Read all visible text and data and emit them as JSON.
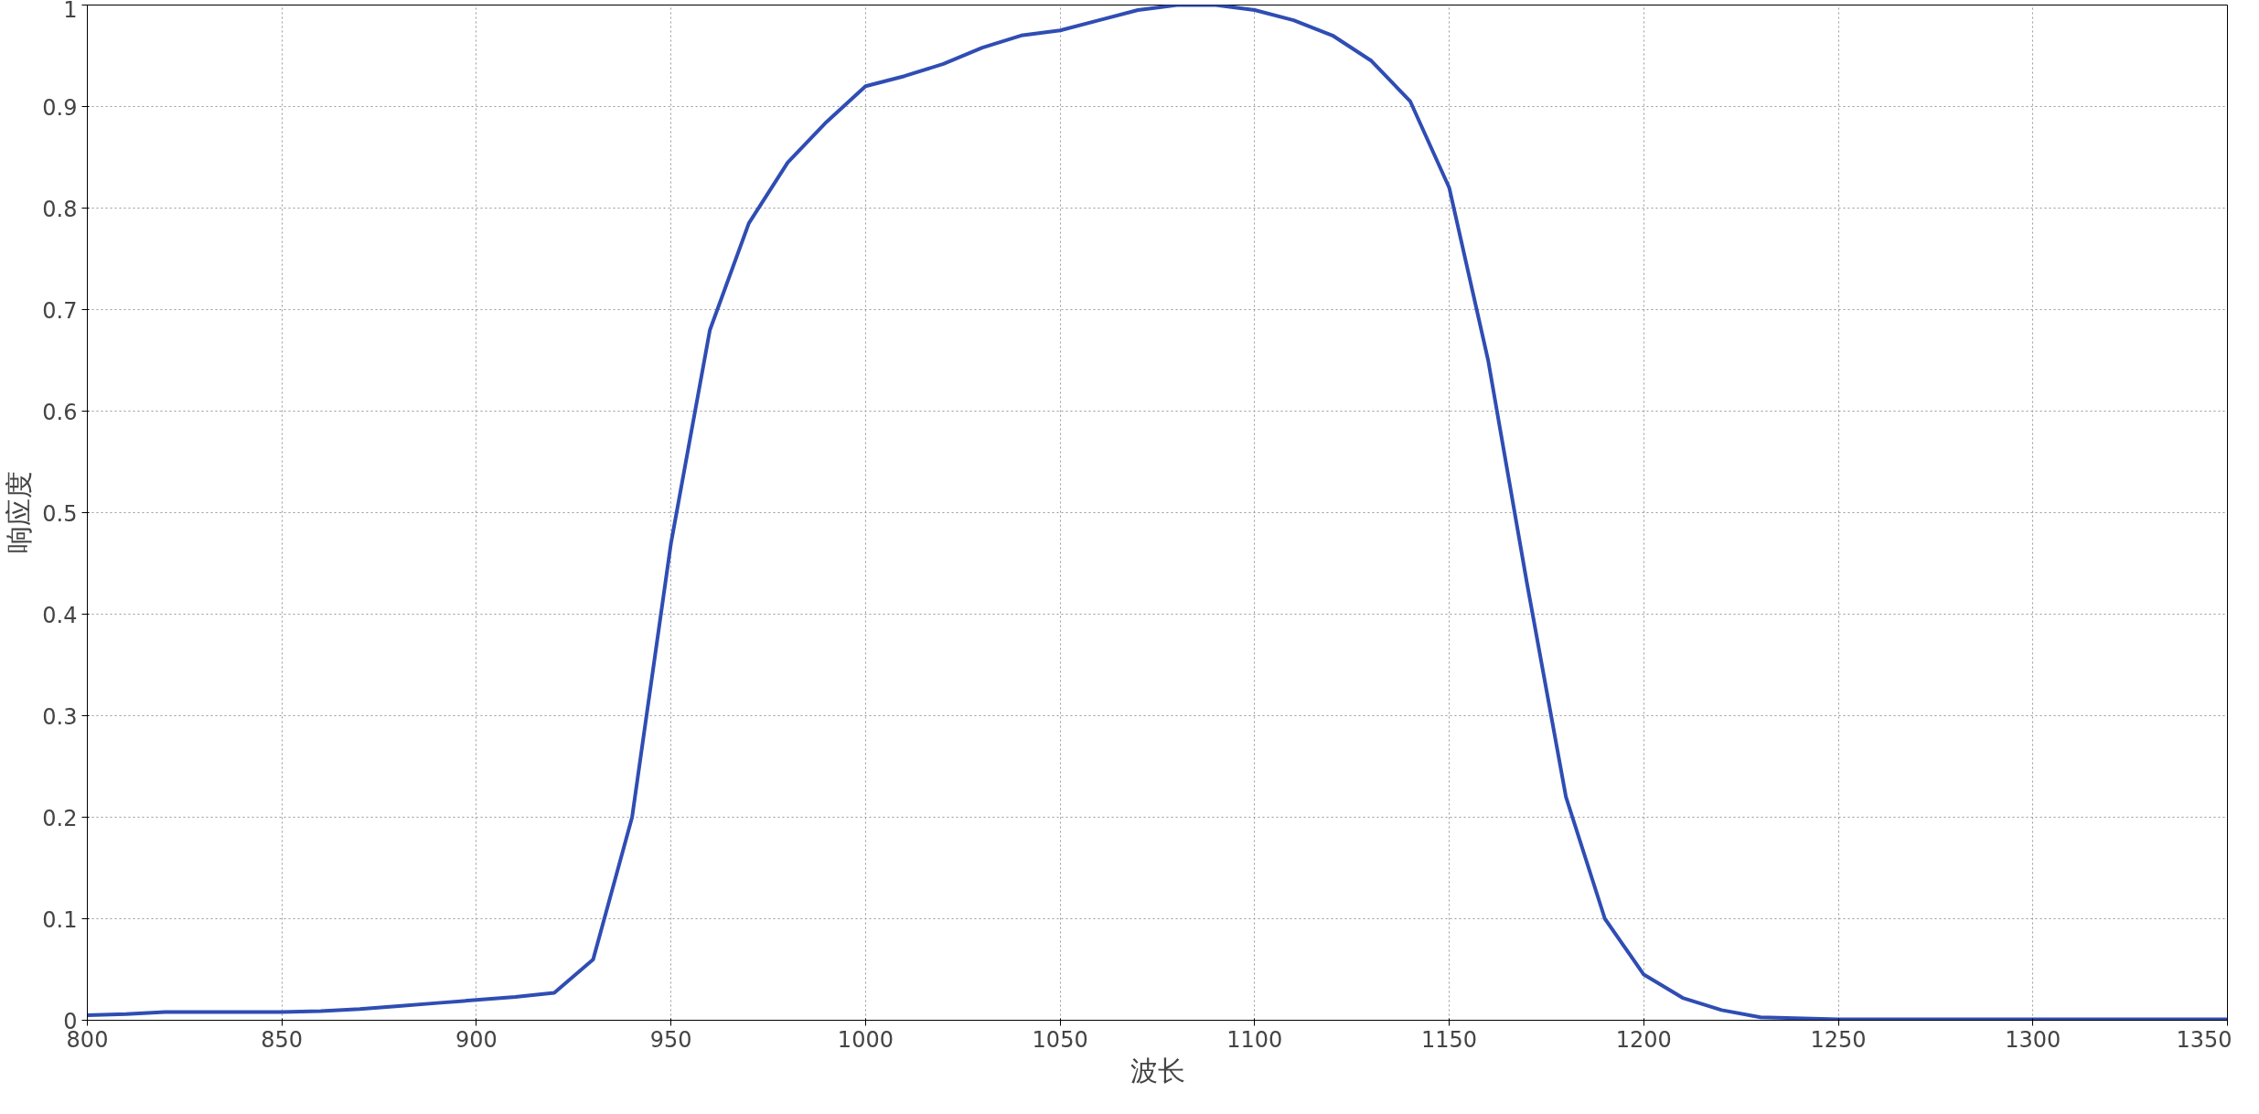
{
  "chart_data": {
    "type": "line",
    "xlabel": "波长",
    "ylabel": "响应度",
    "xlim": [
      800,
      1350
    ],
    "xticks": [
      800,
      850,
      900,
      950,
      1000,
      1050,
      1100,
      1150,
      1200,
      1250,
      1300,
      1350
    ],
    "ylim": [
      0,
      1
    ],
    "yticks": [
      0,
      0.1,
      0.2,
      0.3,
      0.4,
      0.5,
      0.6,
      0.7,
      0.8,
      0.9,
      1
    ],
    "grid": true,
    "line_style": "solid",
    "series": [
      {
        "color": "#2f4db3",
        "x": [
          800,
          810,
          820,
          850,
          860,
          870,
          880,
          890,
          900,
          910,
          920,
          930,
          940,
          950,
          960,
          970,
          980,
          990,
          1000,
          1010,
          1020,
          1030,
          1040,
          1050,
          1060,
          1070,
          1080,
          1090,
          1100,
          1110,
          1120,
          1130,
          1140,
          1150,
          1160,
          1170,
          1180,
          1190,
          1200,
          1210,
          1220,
          1230,
          1250,
          1300,
          1350
        ],
        "values": [
          0.005,
          0.006,
          0.008,
          0.008,
          0.009,
          0.011,
          0.014,
          0.017,
          0.02,
          0.023,
          0.027,
          0.06,
          0.2,
          0.47,
          0.68,
          0.785,
          0.845,
          0.885,
          0.92,
          0.93,
          0.942,
          0.958,
          0.97,
          0.975,
          0.985,
          0.995,
          1.0,
          1.0,
          0.995,
          0.985,
          0.97,
          0.945,
          0.905,
          0.82,
          0.65,
          0.43,
          0.22,
          0.1,
          0.045,
          0.022,
          0.01,
          0.003,
          0.001,
          0.001,
          0.001
        ]
      }
    ]
  }
}
